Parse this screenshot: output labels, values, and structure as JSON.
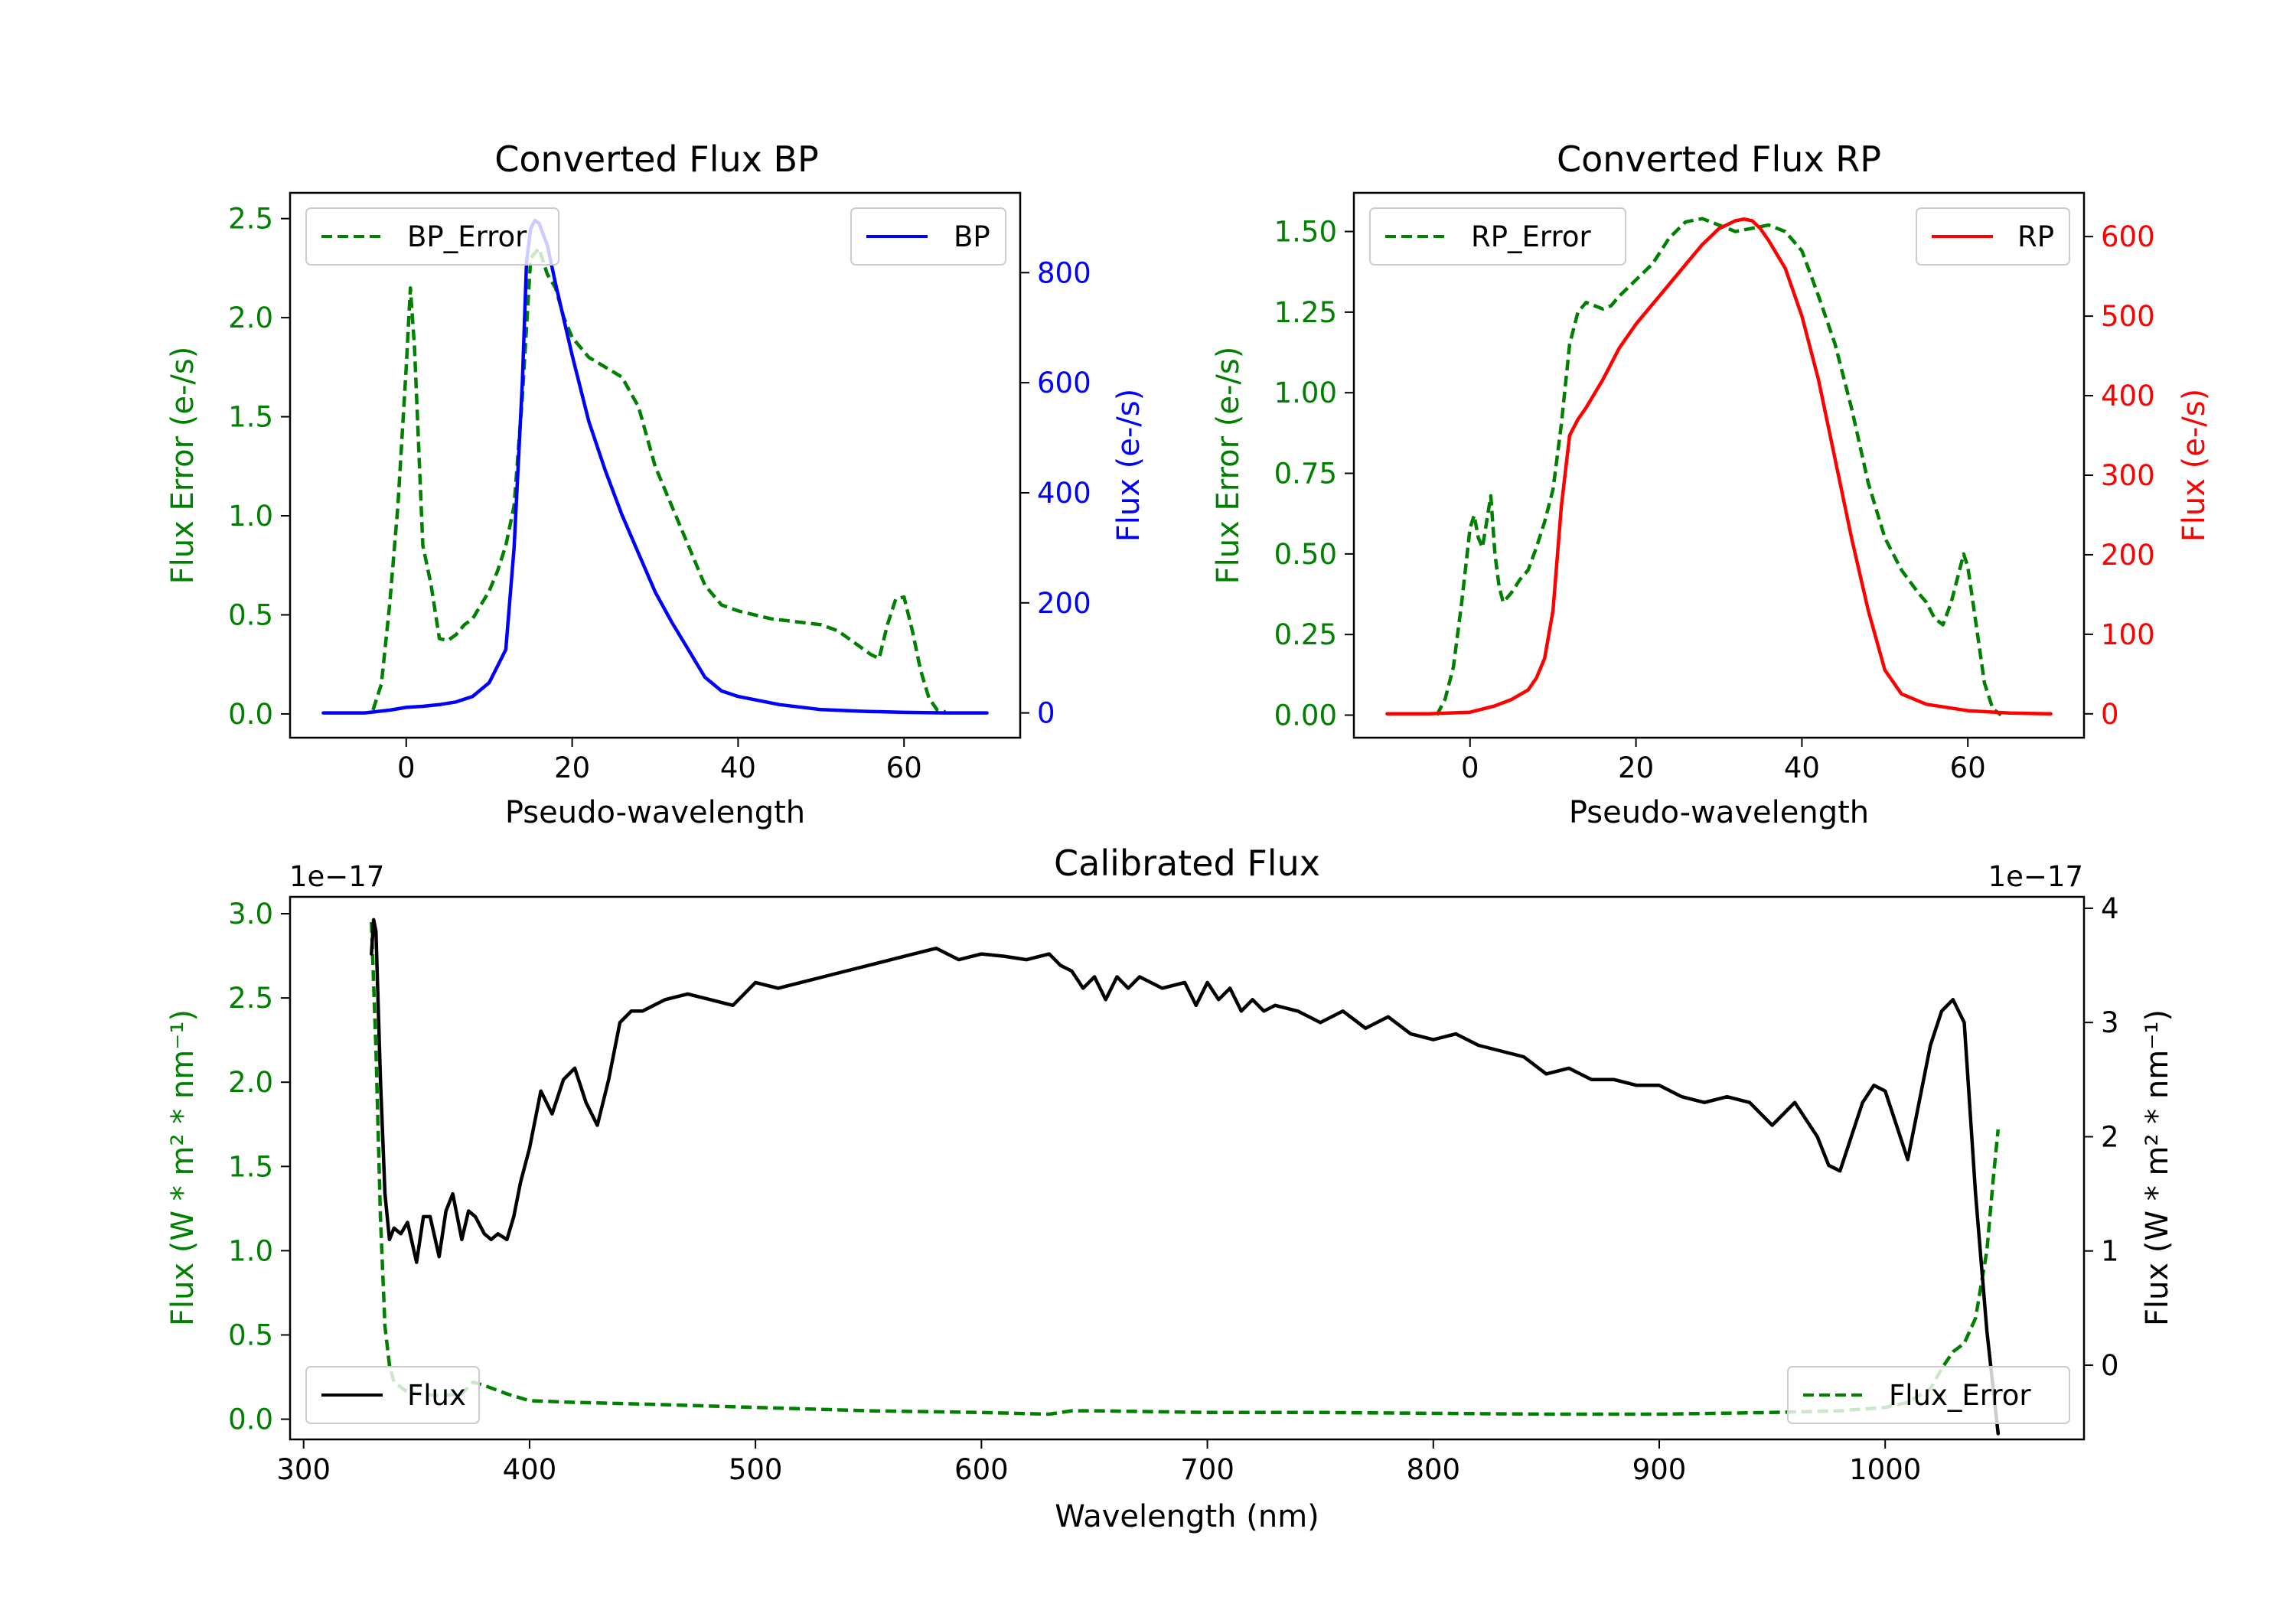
{
  "colors": {
    "error": "#008000",
    "bp": "#0000ff",
    "rp": "#ff0000",
    "flux": "#000000",
    "axis": "#000000"
  },
  "chart_data": [
    {
      "id": "bp",
      "type": "line",
      "title": "Converted Flux BP",
      "xlabel": "Pseudo-wavelength",
      "ylabel_left": "Flux Error (e-/s)",
      "ylabel_right": "Flux (e-/s)",
      "xlim": [
        -14,
        74
      ],
      "ylim_left": [
        -0.12,
        2.63
      ],
      "ylim_right": [
        -45,
        945
      ],
      "xticks": [
        0,
        20,
        40,
        60
      ],
      "yticks_left": [
        0.0,
        0.5,
        1.0,
        1.5,
        2.0,
        2.5
      ],
      "yticks_right": [
        0,
        200,
        400,
        600,
        800
      ],
      "legend_left": "top-left",
      "legend_right": "top-right",
      "series": [
        {
          "name": "BP_Error",
          "axis": "left",
          "style": "dashed",
          "color": "#008000",
          "x": [
            -4,
            -3,
            -2,
            -1,
            0,
            0.5,
            1,
            2,
            2.5,
            3,
            4,
            5,
            6,
            7,
            8,
            9,
            10,
            11,
            12,
            13,
            14,
            15,
            16,
            17,
            18,
            19,
            20,
            22,
            24,
            26,
            28,
            30,
            32,
            34,
            36,
            38,
            40,
            42,
            44,
            46,
            48,
            50,
            52,
            54,
            56,
            57,
            58,
            59,
            60,
            61,
            62,
            63,
            64,
            65
          ],
          "y": [
            0.02,
            0.15,
            0.55,
            1.05,
            1.75,
            2.15,
            1.85,
            0.85,
            0.75,
            0.65,
            0.38,
            0.37,
            0.4,
            0.45,
            0.48,
            0.55,
            0.62,
            0.72,
            0.85,
            1.05,
            1.6,
            2.3,
            2.35,
            2.22,
            2.15,
            2.0,
            1.9,
            1.8,
            1.75,
            1.7,
            1.55,
            1.25,
            1.05,
            0.85,
            0.65,
            0.55,
            0.52,
            0.5,
            0.48,
            0.47,
            0.46,
            0.45,
            0.42,
            0.36,
            0.3,
            0.28,
            0.45,
            0.58,
            0.59,
            0.42,
            0.22,
            0.08,
            0.02,
            0.01
          ]
        },
        {
          "name": "BP",
          "axis": "right",
          "style": "solid",
          "color": "#0000ff",
          "x": [
            -10,
            -5,
            -2,
            0,
            2,
            4,
            6,
            8,
            10,
            12,
            13,
            14,
            14.5,
            15,
            15.5,
            16,
            17,
            18,
            20,
            22,
            24,
            26,
            28,
            30,
            32,
            34,
            36,
            38,
            40,
            45,
            50,
            55,
            60,
            65,
            70
          ],
          "y": [
            0,
            0,
            5,
            10,
            12,
            15,
            20,
            30,
            55,
            115,
            300,
            600,
            820,
            880,
            895,
            890,
            850,
            780,
            650,
            530,
            440,
            360,
            290,
            220,
            165,
            115,
            65,
            40,
            30,
            15,
            6,
            3,
            1,
            0,
            0
          ]
        }
      ]
    },
    {
      "id": "rp",
      "type": "line",
      "title": "Converted Flux RP",
      "xlabel": "Pseudo-wavelength",
      "ylabel_left": "Flux Error (e-/s)",
      "ylabel_right": "Flux (e-/s)",
      "xlim": [
        -14,
        74
      ],
      "ylim_left": [
        -0.07,
        1.62
      ],
      "ylim_right": [
        -30,
        655
      ],
      "xticks": [
        0,
        20,
        40,
        60
      ],
      "yticks_left": [
        0.0,
        0.25,
        0.5,
        0.75,
        1.0,
        1.25,
        1.5
      ],
      "yticks_right": [
        0,
        100,
        200,
        300,
        400,
        500,
        600
      ],
      "legend_left": "top-left",
      "legend_right": "top-right",
      "series": [
        {
          "name": "RP_Error",
          "axis": "left",
          "style": "dashed",
          "color": "#008000",
          "x": [
            -4,
            -3,
            -2,
            -1,
            0,
            0.5,
            1,
            1.5,
            2,
            2.5,
            3,
            3.5,
            4,
            5,
            6,
            7,
            8,
            9,
            10,
            11,
            12,
            13,
            14,
            15,
            16,
            17,
            18,
            20,
            22,
            24,
            26,
            28,
            30,
            32,
            34,
            36,
            38,
            40,
            42,
            44,
            46,
            48,
            50,
            52,
            54,
            55,
            56,
            57,
            58,
            59,
            59.5,
            60,
            61,
            62,
            63,
            64
          ],
          "y": [
            0.0,
            0.05,
            0.15,
            0.35,
            0.58,
            0.62,
            0.55,
            0.52,
            0.6,
            0.68,
            0.5,
            0.4,
            0.35,
            0.38,
            0.42,
            0.45,
            0.52,
            0.6,
            0.7,
            0.9,
            1.15,
            1.25,
            1.28,
            1.27,
            1.26,
            1.27,
            1.3,
            1.35,
            1.4,
            1.48,
            1.53,
            1.54,
            1.52,
            1.5,
            1.51,
            1.52,
            1.5,
            1.44,
            1.3,
            1.15,
            0.95,
            0.72,
            0.55,
            0.45,
            0.38,
            0.35,
            0.3,
            0.28,
            0.35,
            0.45,
            0.5,
            0.46,
            0.28,
            0.1,
            0.02,
            0.0
          ]
        },
        {
          "name": "RP",
          "axis": "right",
          "style": "solid",
          "color": "#ff0000",
          "x": [
            -10,
            -5,
            0,
            3,
            5,
            7,
            8,
            9,
            10,
            11,
            12,
            13,
            14,
            16,
            18,
            20,
            22,
            24,
            26,
            28,
            30,
            32,
            33,
            34,
            35,
            36,
            38,
            40,
            42,
            44,
            46,
            48,
            50,
            52,
            55,
            60,
            65,
            70
          ],
          "y": [
            0,
            0,
            2,
            10,
            18,
            30,
            45,
            70,
            130,
            260,
            350,
            370,
            385,
            420,
            460,
            490,
            515,
            540,
            565,
            590,
            610,
            620,
            622,
            620,
            610,
            595,
            560,
            500,
            420,
            320,
            220,
            130,
            55,
            25,
            12,
            4,
            1,
            0
          ]
        }
      ]
    },
    {
      "id": "calibrated",
      "type": "line",
      "title": "Calibrated Flux",
      "xlabel": "Wavelength (nm)",
      "ylabel_left": "Flux (W * m² * nm⁻¹)",
      "ylabel_right": "Flux (W * m² * nm⁻¹)",
      "left_offset_text": "1e−17",
      "right_offset_text": "1e−17",
      "xlim": [
        294,
        1088
      ],
      "ylim_left": [
        -0.12,
        3.1
      ],
      "ylim_right": [
        -0.65,
        4.1
      ],
      "xticks": [
        300,
        400,
        500,
        600,
        700,
        800,
        900,
        1000
      ],
      "yticks_left": [
        0.0,
        0.5,
        1.0,
        1.5,
        2.0,
        2.5,
        3.0
      ],
      "yticks_right": [
        0,
        1,
        2,
        3,
        4
      ],
      "legend_left": "bottom-left",
      "legend_right": "bottom-right",
      "series": [
        {
          "name": "Flux_Error",
          "axis": "left",
          "style": "dashed",
          "color": "#008000",
          "x": [
            330,
            332,
            334,
            336,
            338,
            340,
            345,
            350,
            360,
            370,
            375,
            380,
            390,
            400,
            420,
            450,
            500,
            550,
            600,
            630,
            640,
            650,
            700,
            750,
            800,
            850,
            900,
            950,
            980,
            1000,
            1010,
            1020,
            1025,
            1030,
            1035,
            1040,
            1045,
            1048,
            1050
          ],
          "y": [
            2.95,
            2.2,
            1.2,
            0.55,
            0.32,
            0.22,
            0.17,
            0.15,
            0.14,
            0.15,
            0.22,
            0.2,
            0.15,
            0.11,
            0.1,
            0.09,
            0.07,
            0.05,
            0.04,
            0.03,
            0.05,
            0.05,
            0.04,
            0.04,
            0.035,
            0.03,
            0.03,
            0.04,
            0.05,
            0.07,
            0.1,
            0.18,
            0.3,
            0.4,
            0.45,
            0.6,
            1.0,
            1.45,
            1.72
          ]
        },
        {
          "name": "Flux",
          "axis": "right",
          "style": "solid",
          "color": "#000000",
          "x": [
            330,
            331,
            332,
            334,
            336,
            338,
            340,
            343,
            346,
            350,
            353,
            356,
            360,
            363,
            366,
            370,
            373,
            376,
            380,
            383,
            386,
            390,
            393,
            396,
            400,
            405,
            410,
            415,
            420,
            425,
            430,
            435,
            440,
            445,
            450,
            460,
            470,
            480,
            490,
            500,
            510,
            520,
            530,
            540,
            550,
            560,
            570,
            580,
            590,
            600,
            610,
            620,
            630,
            635,
            640,
            645,
            650,
            655,
            660,
            665,
            670,
            680,
            690,
            695,
            700,
            705,
            710,
            715,
            720,
            725,
            730,
            740,
            750,
            760,
            770,
            780,
            790,
            800,
            810,
            820,
            830,
            840,
            850,
            860,
            870,
            880,
            890,
            900,
            910,
            920,
            930,
            940,
            950,
            960,
            970,
            975,
            980,
            985,
            990,
            995,
            1000,
            1005,
            1010,
            1015,
            1020,
            1025,
            1030,
            1035,
            1040,
            1045,
            1050
          ],
          "y": [
            3.6,
            3.9,
            3.8,
            2.5,
            1.5,
            1.1,
            1.2,
            1.15,
            1.25,
            0.9,
            1.3,
            1.3,
            0.95,
            1.35,
            1.5,
            1.1,
            1.35,
            1.3,
            1.15,
            1.1,
            1.15,
            1.1,
            1.3,
            1.6,
            1.9,
            2.4,
            2.2,
            2.5,
            2.6,
            2.3,
            2.1,
            2.5,
            3.0,
            3.1,
            3.1,
            3.2,
            3.25,
            3.2,
            3.15,
            3.35,
            3.3,
            3.35,
            3.4,
            3.45,
            3.5,
            3.55,
            3.6,
            3.65,
            3.55,
            3.6,
            3.58,
            3.55,
            3.6,
            3.5,
            3.45,
            3.3,
            3.4,
            3.2,
            3.4,
            3.3,
            3.4,
            3.3,
            3.35,
            3.15,
            3.35,
            3.2,
            3.3,
            3.1,
            3.2,
            3.1,
            3.15,
            3.1,
            3.0,
            3.1,
            2.95,
            3.05,
            2.9,
            2.85,
            2.9,
            2.8,
            2.75,
            2.7,
            2.55,
            2.6,
            2.5,
            2.5,
            2.45,
            2.45,
            2.35,
            2.3,
            2.35,
            2.3,
            2.1,
            2.3,
            2.0,
            1.75,
            1.7,
            2.0,
            2.3,
            2.45,
            2.4,
            2.1,
            1.8,
            2.3,
            2.8,
            3.1,
            3.2,
            3.0,
            1.5,
            0.3,
            -0.6
          ]
        }
      ]
    }
  ]
}
